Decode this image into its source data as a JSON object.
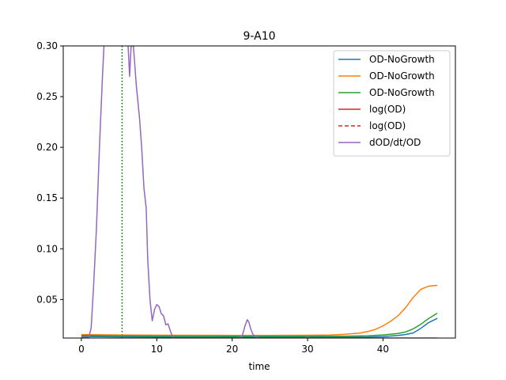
{
  "chart_data": {
    "type": "line",
    "title": "9-A10",
    "xlabel": "time",
    "ylabel": "",
    "xlim": [
      -2.4,
      49.6
    ],
    "ylim": [
      0.012,
      0.3
    ],
    "xticks": [
      0,
      10,
      20,
      30,
      40
    ],
    "xtick_labels": [
      "0",
      "10",
      "20",
      "30",
      "40"
    ],
    "yticks": [
      0.05,
      0.1,
      0.15,
      0.2,
      0.25,
      0.3
    ],
    "ytick_labels": [
      "0.05",
      "0.10",
      "0.15",
      "0.20",
      "0.25",
      "0.30"
    ],
    "grid": false,
    "legend_position": "top-right",
    "vline": {
      "x": 5.4,
      "color": "#006400",
      "style": "dotted"
    },
    "series": [
      {
        "name": "OD-NoGrowth",
        "color": "#1f77b4",
        "style": "solid",
        "x": [
          0,
          5,
          10,
          15,
          20,
          25,
          30,
          35,
          38,
          40,
          42,
          43,
          44,
          45,
          46,
          47.2
        ],
        "y": [
          0.0135,
          0.0132,
          0.013,
          0.0128,
          0.0127,
          0.0127,
          0.0127,
          0.0128,
          0.013,
          0.0135,
          0.0145,
          0.0155,
          0.017,
          0.0215,
          0.027,
          0.0315
        ]
      },
      {
        "name": "OD-NoGrowth",
        "color": "#ff7f0e",
        "style": "solid",
        "x": [
          0,
          5,
          10,
          15,
          20,
          25,
          30,
          33,
          35,
          37,
          38,
          39,
          40,
          41,
          42,
          43,
          44,
          45,
          46,
          47.2
        ],
        "y": [
          0.0155,
          0.015,
          0.0148,
          0.0147,
          0.0146,
          0.0146,
          0.0147,
          0.015,
          0.0157,
          0.017,
          0.0185,
          0.0205,
          0.024,
          0.0285,
          0.034,
          0.042,
          0.052,
          0.06,
          0.063,
          0.064
        ]
      },
      {
        "name": "OD-NoGrowth",
        "color": "#2ca02c",
        "style": "solid",
        "x": [
          0,
          5,
          10,
          15,
          20,
          25,
          30,
          35,
          38,
          40,
          42,
          43,
          44,
          45,
          46,
          47.2
        ],
        "y": [
          0.0145,
          0.0142,
          0.014,
          0.0139,
          0.0138,
          0.0138,
          0.0138,
          0.0139,
          0.0142,
          0.015,
          0.0165,
          0.018,
          0.021,
          0.0255,
          0.031,
          0.0365
        ]
      },
      {
        "name": "log(OD)",
        "color": "#d62728",
        "style": "solid",
        "x": [],
        "y": []
      },
      {
        "name": "log(OD)",
        "color": "#d62728",
        "style": "dashed",
        "x": [],
        "y": []
      },
      {
        "name": "dOD/dt/OD",
        "color": "#9467bd",
        "style": "solid",
        "x": [
          0,
          0.6,
          1.0,
          1.3,
          1.6,
          2.0,
          2.4,
          2.8,
          3.0,
          3.2,
          3.5,
          4.0,
          4.5,
          5.0,
          5.5,
          6.0,
          6.2,
          6.4,
          6.6,
          6.9,
          7.3,
          7.7,
          8.0,
          8.3,
          8.6,
          8.8,
          9.1,
          9.4,
          9.7,
          10.0,
          10.3,
          10.6,
          10.9,
          11.2,
          11.5,
          11.8,
          12.1,
          12.4,
          20.5,
          21.3,
          21.7,
          22.0,
          22.2,
          22.5,
          22.8,
          23.2,
          23.6,
          29.5,
          30.0,
          30.5,
          40.0,
          47.2
        ],
        "y": [
          0.013,
          0.013,
          0.013,
          0.022,
          0.06,
          0.12,
          0.2,
          0.27,
          0.3,
          0.31,
          0.31,
          0.31,
          0.31,
          0.31,
          0.31,
          0.31,
          0.3,
          0.27,
          0.3,
          0.3,
          0.26,
          0.23,
          0.2,
          0.16,
          0.14,
          0.09,
          0.05,
          0.029,
          0.04,
          0.045,
          0.043,
          0.036,
          0.034,
          0.025,
          0.026,
          0.019,
          0.013,
          0.012,
          0.012,
          0.013,
          0.024,
          0.03,
          0.028,
          0.02,
          0.015,
          0.013,
          0.012,
          0.012,
          0.013,
          0.012,
          0.012,
          0.012
        ]
      }
    ]
  }
}
